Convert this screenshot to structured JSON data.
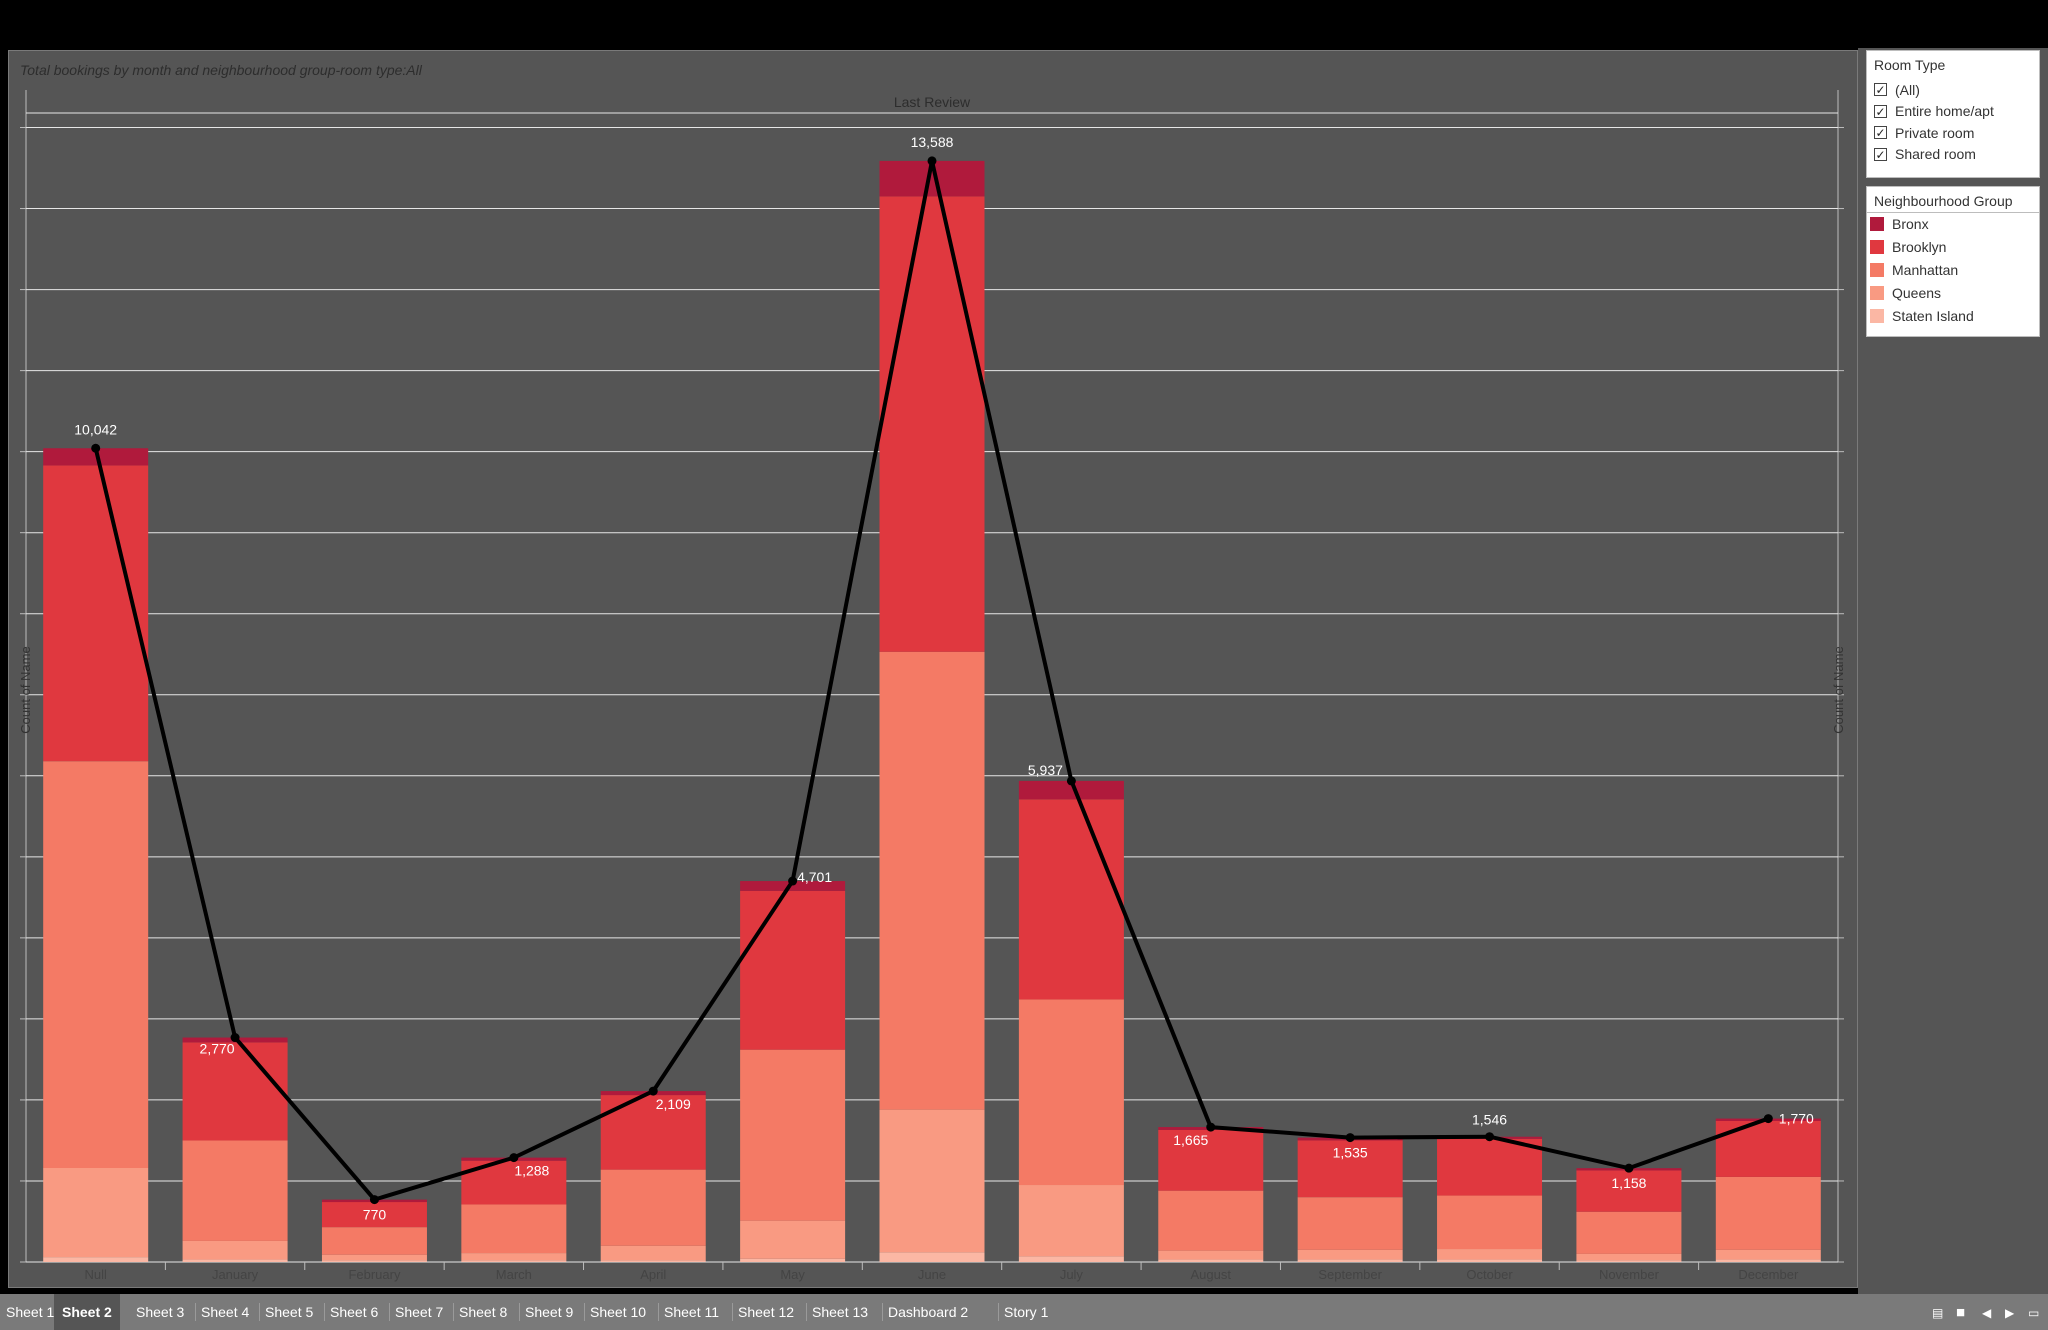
{
  "subtitle": "Total bookings by month and neighbourhood group-room type:All",
  "room_type_filter": {
    "title": "Room Type",
    "options": [
      {
        "label": "(All)",
        "checked": true
      },
      {
        "label": "Entire home/apt",
        "checked": true
      },
      {
        "label": "Private room",
        "checked": true
      },
      {
        "label": "Shared room",
        "checked": true
      }
    ]
  },
  "neighbourhood_legend": {
    "title": "Neighbourhood Group",
    "items": [
      {
        "label": "Bronx",
        "color": "#b01a3c"
      },
      {
        "label": "Brooklyn",
        "color": "#e0383f"
      },
      {
        "label": "Manhattan",
        "color": "#f47a65"
      },
      {
        "label": "Queens",
        "color": "#f99a82"
      },
      {
        "label": "Staten Island",
        "color": "#fbb7a4"
      }
    ]
  },
  "tabs": [
    {
      "label": "Sheet 1",
      "active": false
    },
    {
      "label": "Sheet 2",
      "active": true
    },
    {
      "label": "Sheet 3",
      "active": false
    },
    {
      "label": "Sheet 4",
      "active": false
    },
    {
      "label": "Sheet 5",
      "active": false
    },
    {
      "label": "Sheet 6",
      "active": false
    },
    {
      "label": "Sheet 7",
      "active": false
    },
    {
      "label": "Sheet 8",
      "active": false
    },
    {
      "label": "Sheet 9",
      "active": false
    },
    {
      "label": "Sheet 10",
      "active": false
    },
    {
      "label": "Sheet 11",
      "active": false
    },
    {
      "label": "Sheet 12",
      "active": false
    },
    {
      "label": "Sheet 13",
      "active": false
    },
    {
      "label": "Dashboard 2",
      "active": false
    },
    {
      "label": "Story 1",
      "active": false
    }
  ],
  "chart_data": {
    "type": "bar",
    "stacked": true,
    "title": "Last Review",
    "xlabel": "",
    "ylabel": "Count of Name",
    "y2label": "Count of Name",
    "ylim": [
      0,
      14000
    ],
    "grid": true,
    "categories": [
      "Null",
      "January",
      "February",
      "March",
      "April",
      "May",
      "June",
      "July",
      "August",
      "September",
      "October",
      "November",
      "December"
    ],
    "series": [
      {
        "name": "Staten Island",
        "color": "#fbb7a4",
        "values": [
          60,
          30,
          20,
          20,
          20,
          40,
          120,
          70,
          30,
          30,
          30,
          20,
          30
        ]
      },
      {
        "name": "Queens",
        "color": "#f99a82",
        "values": [
          1100,
          230,
          70,
          90,
          180,
          470,
          1760,
          880,
          110,
          120,
          130,
          80,
          120
        ]
      },
      {
        "name": "Manhattan",
        "color": "#f47a65",
        "values": [
          5020,
          1240,
          340,
          600,
          940,
          2110,
          5650,
          2290,
          740,
          650,
          660,
          520,
          900
        ]
      },
      {
        "name": "Brooklyn",
        "color": "#e0383f",
        "values": [
          3650,
          1210,
          310,
          540,
          920,
          1960,
          5620,
          2470,
          750,
          700,
          700,
          510,
          690
        ]
      },
      {
        "name": "Bronx",
        "color": "#b01a3c",
        "values": [
          212,
          60,
          30,
          38,
          49,
          121,
          438,
          227,
          35,
          35,
          26,
          28,
          30
        ]
      }
    ],
    "line": {
      "name": "Count of Name",
      "values": [
        10042,
        2770,
        770,
        1288,
        2109,
        4701,
        13588,
        5937,
        1665,
        1535,
        1546,
        1158,
        1770
      ]
    },
    "data_labels": [
      "10,042",
      "2,770",
      "770",
      "1,288",
      "2,109",
      "4,701",
      "13,588",
      "5,937",
      "1,665",
      "1,535",
      "1,546",
      "1,158",
      "1,770"
    ]
  }
}
